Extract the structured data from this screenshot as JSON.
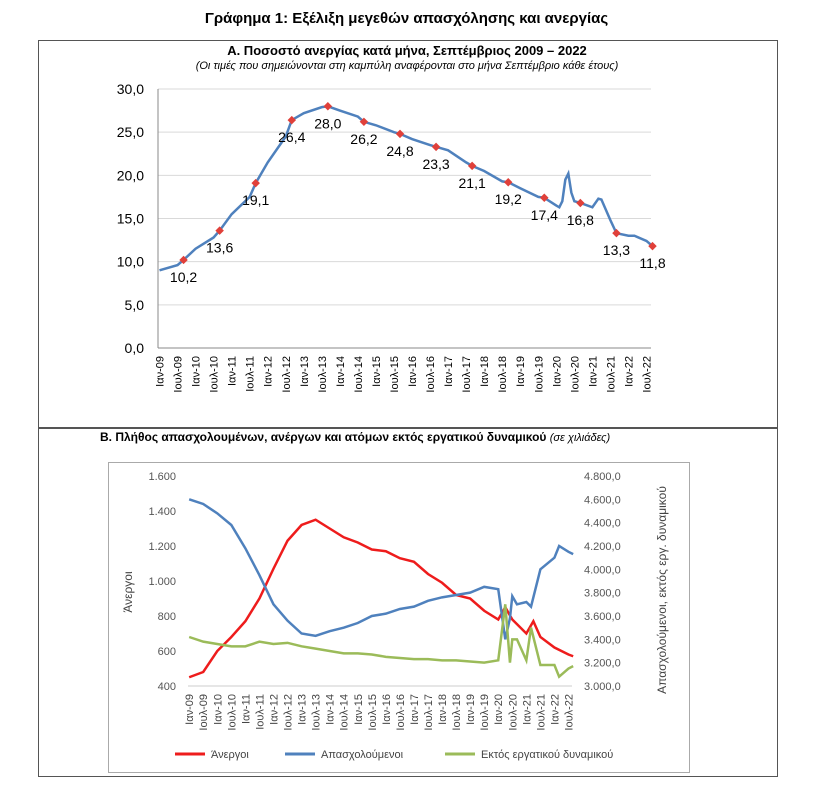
{
  "title": "Γράφημα 1: Εξέλιξη μεγεθών απασχόλησης και ανεργίας",
  "chart_data": [
    {
      "type": "line",
      "title": "Α. Ποσοστό ανεργίας κατά μήνα, Σεπτέμβριος 2009 – 2022",
      "subtitle": "(Οι τιμές που σημειώνονται στη καμπύλη αναφέρονται στο μήνα Σεπτέμβριο κάθε έτους)",
      "ylim": [
        0,
        30
      ],
      "yticks": [
        "0,0",
        "5,0",
        "10,0",
        "15,0",
        "20,0",
        "25,0",
        "30,0"
      ],
      "xticks": [
        "Ιαν-09",
        "Ιουλ-09",
        "Ιαν-10",
        "Ιουλ-10",
        "Ιαν-11",
        "Ιουλ-11",
        "Ιαν-12",
        "Ιουλ-12",
        "Ιαν-13",
        "Ιουλ-13",
        "Ιαν-14",
        "Ιουλ-14",
        "Ιαν-15",
        "Ιουλ-15",
        "Ιαν-16",
        "Ιουλ-16",
        "Ιαν-17",
        "Ιουλ-17",
        "Ιαν-18",
        "Ιουλ-18",
        "Ιαν-19",
        "Ιουλ-19",
        "Ιαν-20",
        "Ιουλ-20",
        "Ιαν-21",
        "Ιουλ-21",
        "Ιαν-22",
        "Ιουλ-22"
      ],
      "series": [
        {
          "color": "#4f81bd",
          "x": [
            "2009-01",
            "2009-07",
            "2009-09",
            "2010-01",
            "2010-07",
            "2010-09",
            "2011-01",
            "2011-07",
            "2011-09",
            "2012-01",
            "2012-07",
            "2012-09",
            "2013-01",
            "2013-07",
            "2013-09",
            "2014-01",
            "2014-07",
            "2014-09",
            "2015-01",
            "2015-07",
            "2015-09",
            "2016-01",
            "2016-07",
            "2016-09",
            "2017-01",
            "2017-07",
            "2017-09",
            "2018-01",
            "2018-07",
            "2018-09",
            "2019-01",
            "2019-07",
            "2019-09",
            "2020-01",
            "2020-02",
            "2020-03",
            "2020-04",
            "2020-05",
            "2020-06",
            "2020-07",
            "2020-09",
            "2021-01",
            "2021-03",
            "2021-04",
            "2021-07",
            "2021-09",
            "2022-01",
            "2022-03",
            "2022-07",
            "2022-09"
          ],
          "y": [
            9.0,
            9.6,
            10.2,
            11.5,
            12.8,
            13.6,
            15.5,
            17.5,
            19.1,
            21.5,
            24.5,
            26.4,
            27.2,
            27.9,
            28.0,
            27.5,
            26.8,
            26.2,
            25.8,
            25.0,
            24.8,
            24.2,
            23.5,
            23.3,
            22.9,
            21.5,
            21.1,
            20.5,
            19.3,
            19.2,
            18.5,
            17.5,
            17.4,
            16.5,
            16.3,
            17.0,
            19.5,
            20.2,
            18.0,
            17.0,
            16.8,
            16.3,
            17.3,
            17.2,
            14.8,
            13.3,
            13.0,
            13.0,
            12.4,
            11.8
          ]
        }
      ],
      "annotations": [
        {
          "x": "2009-09",
          "label": "10,2",
          "v": 10.2
        },
        {
          "x": "2010-09",
          "label": "13,6",
          "v": 13.6
        },
        {
          "x": "2011-09",
          "label": "19,1",
          "v": 19.1
        },
        {
          "x": "2012-09",
          "label": "26,4",
          "v": 26.4
        },
        {
          "x": "2013-09",
          "label": "28,0",
          "v": 28.0
        },
        {
          "x": "2014-09",
          "label": "26,2",
          "v": 26.2
        },
        {
          "x": "2015-09",
          "label": "24,8",
          "v": 24.8
        },
        {
          "x": "2016-09",
          "label": "23,3",
          "v": 23.3
        },
        {
          "x": "2017-09",
          "label": "21,1",
          "v": 21.1
        },
        {
          "x": "2018-09",
          "label": "19,2",
          "v": 19.2
        },
        {
          "x": "2019-09",
          "label": "17,4",
          "v": 17.4
        },
        {
          "x": "2020-09",
          "label": "16,8",
          "v": 16.8
        },
        {
          "x": "2021-09",
          "label": "13,3",
          "v": 13.3
        },
        {
          "x": "2022-09",
          "label": "11,8",
          "v": 11.8
        }
      ],
      "marker_color": "#e0403a"
    },
    {
      "type": "line",
      "title": "Β. Πλήθος απασχολουμένων, ανέργων και ατόμων εκτός εργατικού δυναμικού",
      "title_note": "(σε χιλιάδες)",
      "ylabel": "Άνεργοι",
      "ylabel_right": "Απασχολούμενοι, εκτός εργ. δυναμικού",
      "ylim": [
        400,
        1600
      ],
      "ylim_right": [
        3000,
        4800
      ],
      "yticks": [
        "400",
        "600",
        "800",
        "1.000",
        "1.200",
        "1.400",
        "1.600"
      ],
      "yticks_right": [
        "3.000,0",
        "3.200,0",
        "3.400,0",
        "3.600,0",
        "3.800,0",
        "4.000,0",
        "4.200,0",
        "4.400,0",
        "4.600,0",
        "4.800,0"
      ],
      "legend": "bottom",
      "series": [
        {
          "name": "Άνεργοι",
          "axis": "left",
          "color": "#ee1c1c",
          "x": [
            "2009-01",
            "2009-07",
            "2010-01",
            "2010-07",
            "2011-01",
            "2011-07",
            "2012-01",
            "2012-07",
            "2013-01",
            "2013-07",
            "2014-01",
            "2014-07",
            "2015-01",
            "2015-07",
            "2016-01",
            "2016-07",
            "2017-01",
            "2017-07",
            "2018-01",
            "2018-07",
            "2019-01",
            "2019-07",
            "2020-01",
            "2020-04",
            "2020-07",
            "2021-01",
            "2021-04",
            "2021-07",
            "2022-01",
            "2022-07",
            "2022-09"
          ],
          "y": [
            450,
            480,
            600,
            680,
            770,
            900,
            1070,
            1230,
            1320,
            1350,
            1300,
            1250,
            1220,
            1180,
            1170,
            1130,
            1110,
            1040,
            990,
            920,
            900,
            830,
            780,
            850,
            780,
            700,
            770,
            680,
            620,
            580,
            570
          ]
        },
        {
          "name": "Απασχολούμενοι",
          "axis": "right",
          "color": "#4f81bd",
          "x": [
            "2009-01",
            "2009-07",
            "2010-01",
            "2010-07",
            "2011-01",
            "2011-07",
            "2012-01",
            "2012-07",
            "2013-01",
            "2013-07",
            "2014-01",
            "2014-07",
            "2015-01",
            "2015-07",
            "2016-01",
            "2016-07",
            "2017-01",
            "2017-07",
            "2018-01",
            "2018-07",
            "2019-01",
            "2019-07",
            "2020-01",
            "2020-04",
            "2020-06",
            "2020-07",
            "2020-09",
            "2021-01",
            "2021-03",
            "2021-07",
            "2022-01",
            "2022-03",
            "2022-07",
            "2022-09"
          ],
          "y": [
            4600,
            4560,
            4480,
            4380,
            4180,
            3950,
            3700,
            3560,
            3450,
            3430,
            3470,
            3500,
            3540,
            3600,
            3620,
            3660,
            3680,
            3730,
            3760,
            3780,
            3800,
            3850,
            3830,
            3400,
            3580,
            3770,
            3700,
            3720,
            3680,
            4000,
            4100,
            4200,
            4150,
            4130
          ]
        },
        {
          "name": "Εκτός εργατικού δυναμικού",
          "axis": "right",
          "color": "#9bbb59",
          "x": [
            "2009-01",
            "2009-07",
            "2010-01",
            "2010-07",
            "2011-01",
            "2011-07",
            "2012-01",
            "2012-07",
            "2013-01",
            "2013-07",
            "2014-01",
            "2014-07",
            "2015-01",
            "2015-07",
            "2016-01",
            "2016-07",
            "2017-01",
            "2017-07",
            "2018-01",
            "2018-07",
            "2019-01",
            "2019-07",
            "2020-01",
            "2020-04",
            "2020-06",
            "2020-07",
            "2020-09",
            "2021-01",
            "2021-03",
            "2021-07",
            "2022-01",
            "2022-03",
            "2022-07",
            "2022-09"
          ],
          "y": [
            3420,
            3380,
            3360,
            3340,
            3340,
            3380,
            3360,
            3370,
            3340,
            3320,
            3300,
            3280,
            3280,
            3270,
            3250,
            3240,
            3230,
            3230,
            3220,
            3220,
            3210,
            3200,
            3220,
            3700,
            3200,
            3400,
            3400,
            3220,
            3500,
            3180,
            3180,
            3080,
            3150,
            3170
          ]
        }
      ]
    }
  ]
}
